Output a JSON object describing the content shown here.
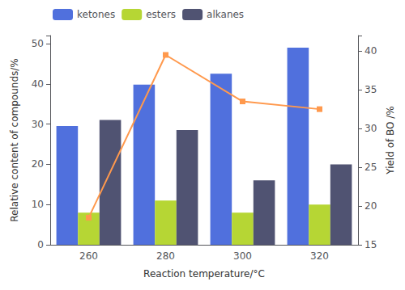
{
  "chart_data": {
    "type": "bar",
    "xlabel": "Reaction temperature/°C",
    "ylabel": "Relative content of compounds/%",
    "y2label": "Yield of BO /%",
    "categories": [
      "260",
      "280",
      "300",
      "320"
    ],
    "series": [
      {
        "name": "ketones",
        "values": [
          29.5,
          39.8,
          42.5,
          49.0
        ]
      },
      {
        "name": "esters",
        "values": [
          8.0,
          11.0,
          8.0,
          10.0
        ]
      },
      {
        "name": "alkanes",
        "values": [
          31.0,
          28.5,
          16.0,
          20.0
        ]
      },
      {
        "type": "line",
        "axis": "y2",
        "marker": "square",
        "values": [
          18.5,
          39.5,
          33.5,
          32.5
        ]
      }
    ],
    "ylim": [
      0,
      52
    ],
    "yticks": [
      0,
      10,
      20,
      30,
      40,
      50
    ],
    "y2lim": [
      15,
      42
    ],
    "y2ticks": [
      15,
      20,
      25,
      30,
      35,
      40
    ],
    "legend": "upper left",
    "grid": false
  }
}
